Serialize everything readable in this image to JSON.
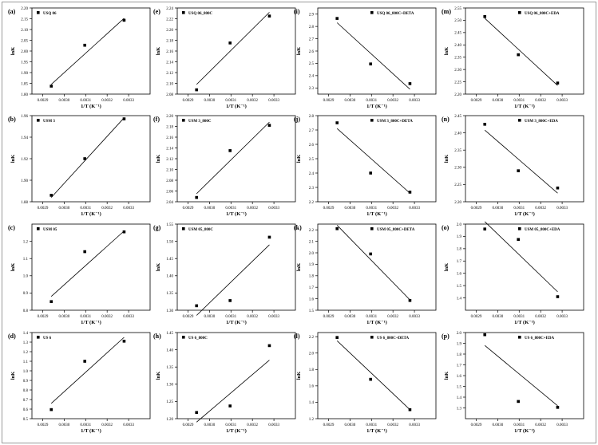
{
  "chart_data": [
    {
      "id": "a",
      "panel_label": "(a)",
      "type": "scatter",
      "legend": "USQ 06",
      "ylabel": "lnK",
      "xlabel": "1/T (K⁻¹)",
      "x": [
        0.00294,
        0.003096,
        0.003279
      ],
      "y": [
        1.837,
        2.027,
        2.143
      ],
      "fit": [
        1.845,
        2.152
      ],
      "xlim": [
        0.00285,
        0.0034
      ],
      "xticks": [
        "0.0029",
        "0.0030",
        "0.0031",
        "0.0032",
        "0.0033"
      ],
      "ylim": [
        1.8,
        2.2
      ],
      "yticks": [
        "1.80",
        "1.85",
        "1.90",
        "1.95",
        "2.00",
        "2.05",
        "2.10",
        "2.15",
        "2.20"
      ]
    },
    {
      "id": "b",
      "panel_label": "(b)",
      "type": "scatter",
      "legend": "USM 3",
      "ylabel": "lnK",
      "xlabel": "1/T (K⁻¹)",
      "x": [
        0.00294,
        0.003096,
        0.003279
      ],
      "y": [
        1.886,
        1.92,
        1.957
      ],
      "fit": [
        1.884,
        1.958
      ],
      "xlim": [
        0.00285,
        0.0034
      ],
      "xticks": [
        "0.0029",
        "0.0030",
        "0.0031",
        "0.0032",
        "0.0033"
      ],
      "ylim": [
        1.88,
        1.96
      ],
      "yticks": [
        "1.88",
        "1.90",
        "1.92",
        "1.94",
        "1.96"
      ]
    },
    {
      "id": "c",
      "panel_label": "(c)",
      "type": "scatter",
      "legend": "USM 05",
      "ylabel": "lnK",
      "xlabel": "1/T (K⁻¹)",
      "x": [
        0.00294,
        0.003096,
        0.003279
      ],
      "y": [
        0.85,
        1.14,
        1.255
      ],
      "fit": [
        0.88,
        1.26
      ],
      "xlim": [
        0.00285,
        0.0034
      ],
      "xticks": [
        "0.0029",
        "0.0030",
        "0.0031",
        "0.0032",
        "0.0033"
      ],
      "ylim": [
        0.8,
        1.3
      ],
      "yticks": [
        "0.8",
        "0.9",
        "1.0",
        "1.1",
        "1.2"
      ]
    },
    {
      "id": "d",
      "panel_label": "(d)",
      "type": "scatter",
      "legend": "US 6",
      "ylabel": "lnK",
      "xlabel": "1/T (K⁻¹)",
      "x": [
        0.00294,
        0.003096,
        0.003279
      ],
      "y": [
        0.595,
        1.1,
        1.31
      ],
      "fit": [
        0.66,
        1.35
      ],
      "xlim": [
        0.00285,
        0.0034
      ],
      "xticks": [
        "0.0029",
        "0.0030",
        "0.0031",
        "0.0032",
        "0.0033"
      ],
      "ylim": [
        0.5,
        1.4
      ],
      "yticks": [
        "0.5",
        "0.6",
        "0.7",
        "0.8",
        "0.9",
        "1.0",
        "1.1",
        "1.2",
        "1.3",
        "1.4"
      ]
    },
    {
      "id": "e",
      "panel_label": "(e)",
      "type": "scatter",
      "legend": "USQ 06_800C",
      "ylabel": "lnK",
      "xlabel": "1/T (K⁻¹)",
      "x": [
        0.00294,
        0.003096,
        0.003279
      ],
      "y": [
        2.088,
        2.175,
        2.225
      ],
      "fit": [
        2.098,
        2.232
      ],
      "xlim": [
        0.00285,
        0.0034
      ],
      "xticks": [
        "0.0029",
        "0.0030",
        "0.0031",
        "0.0032",
        "0.0033"
      ],
      "ylim": [
        2.08,
        2.24
      ],
      "yticks": [
        "2.08",
        "2.10",
        "2.12",
        "2.14",
        "2.16",
        "2.18",
        "2.20",
        "2.22",
        "2.24"
      ]
    },
    {
      "id": "f",
      "panel_label": "(f)",
      "type": "scatter",
      "legend": "USM 3_800C",
      "ylabel": "lnK",
      "xlabel": "1/T (K⁻¹)",
      "x": [
        0.00294,
        0.003096,
        0.003279
      ],
      "y": [
        2.048,
        2.135,
        2.182
      ],
      "fit": [
        2.055,
        2.188
      ],
      "xlim": [
        0.00285,
        0.0034
      ],
      "xticks": [
        "0.0029",
        "0.0030",
        "0.0031",
        "0.0032",
        "0.0033"
      ],
      "ylim": [
        2.04,
        2.2
      ],
      "yticks": [
        "2.04",
        "2.06",
        "2.08",
        "2.10",
        "2.12",
        "2.14",
        "2.16",
        "2.18",
        "2.20"
      ]
    },
    {
      "id": "g",
      "panel_label": "(g)",
      "type": "scatter",
      "legend": "USM 05_800C",
      "ylabel": "lnK",
      "xlabel": "1/T (K⁻¹)",
      "x": [
        0.00294,
        0.003096,
        0.003279
      ],
      "y": [
        1.313,
        1.328,
        1.512
      ],
      "fit": [
        1.285,
        1.49
      ],
      "xlim": [
        0.00285,
        0.0034
      ],
      "xticks": [
        "0.0029",
        "0.0030",
        "0.0031",
        "0.0032",
        "0.0033"
      ],
      "ylim": [
        1.3,
        1.55
      ],
      "yticks": [
        "1.30",
        "1.35",
        "1.40",
        "1.45",
        "1.50",
        "1.55"
      ]
    },
    {
      "id": "h",
      "panel_label": "(h)",
      "type": "scatter",
      "legend": "US 6_800C",
      "ylabel": "lnK",
      "xlabel": "1/T (K⁻¹)",
      "x": [
        0.00294,
        0.003096,
        0.003279
      ],
      "y": [
        1.218,
        1.237,
        1.412
      ],
      "fit": [
        1.19,
        1.37
      ],
      "xlim": [
        0.00285,
        0.0034
      ],
      "xticks": [
        "0.0029",
        "0.0030",
        "0.0031",
        "0.0032",
        "0.0033"
      ],
      "ylim": [
        1.2,
        1.45
      ],
      "yticks": [
        "1.20",
        "1.25",
        "1.30",
        "1.35",
        "1.40",
        "1.45"
      ]
    },
    {
      "id": "i",
      "panel_label": "(i)",
      "type": "scatter",
      "legend": "USQ 06_800C+DETA",
      "ylabel": "lnK",
      "xlabel": "1/T (K⁻¹)",
      "x": [
        0.00294,
        0.003096,
        0.003279
      ],
      "y": [
        2.865,
        2.495,
        2.335
      ],
      "fit": [
        2.83,
        2.29
      ],
      "xlim": [
        0.00285,
        0.0034
      ],
      "xticks": [
        "0.0029",
        "0.0030",
        "0.0031",
        "0.0032",
        "0.0033"
      ],
      "ylim": [
        2.25,
        2.95
      ],
      "yticks": [
        "2.3",
        "2.4",
        "2.5",
        "2.6",
        "2.7",
        "2.8",
        "2.9"
      ]
    },
    {
      "id": "j",
      "panel_label": "(j)",
      "type": "scatter",
      "legend": "USM 3_800C+DETA",
      "ylabel": "lnK",
      "xlabel": "1/T (K⁻¹)",
      "x": [
        0.00294,
        0.003096,
        0.003279
      ],
      "y": [
        2.75,
        2.4,
        2.267
      ],
      "fit": [
        2.71,
        2.26
      ],
      "xlim": [
        0.00285,
        0.0034
      ],
      "xticks": [
        "0.0029",
        "0.0030",
        "0.0031",
        "0.0032",
        "0.0033"
      ],
      "ylim": [
        2.2,
        2.8
      ],
      "yticks": [
        "2.2",
        "2.3",
        "2.4",
        "2.5",
        "2.6",
        "2.7",
        "2.8"
      ]
    },
    {
      "id": "k",
      "panel_label": "(k)",
      "type": "scatter",
      "legend": "USM 05_800C+DETA",
      "ylabel": "lnK",
      "xlabel": "1/T (K⁻¹)",
      "x": [
        0.00294,
        0.003096,
        0.003279
      ],
      "y": [
        2.21,
        1.99,
        1.585
      ],
      "fit": [
        2.24,
        1.59
      ],
      "xlim": [
        0.00285,
        0.0034
      ],
      "xticks": [
        "0.0029",
        "0.0030",
        "0.0031",
        "0.0032",
        "0.0033"
      ],
      "ylim": [
        1.5,
        2.25
      ],
      "yticks": [
        "1.5",
        "1.6",
        "1.7",
        "1.8",
        "1.9",
        "2.0",
        "2.1",
        "2.2"
      ]
    },
    {
      "id": "l",
      "panel_label": "(l)",
      "type": "scatter",
      "legend": "US 6_800C+DETA",
      "ylabel": "lnK",
      "xlabel": "1/T (K⁻¹)",
      "x": [
        0.00294,
        0.003096,
        0.003279
      ],
      "y": [
        2.19,
        1.68,
        1.31
      ],
      "fit": [
        2.15,
        1.31
      ],
      "xlim": [
        0.00285,
        0.0034
      ],
      "xticks": [
        "0.0029",
        "0.0030",
        "0.0031",
        "0.0032",
        "0.0033"
      ],
      "ylim": [
        1.2,
        2.25
      ],
      "yticks": [
        "1.2",
        "1.4",
        "1.6",
        "1.8",
        "2.0",
        "2.2"
      ]
    },
    {
      "id": "m",
      "panel_label": "(m)",
      "type": "scatter",
      "legend": "USQ 06_800C+EDA",
      "ylabel": "lnK",
      "xlabel": "1/T (K⁻¹)",
      "x": [
        0.00294,
        0.003096,
        0.003279
      ],
      "y": [
        2.515,
        2.36,
        2.245
      ],
      "fit": [
        2.508,
        2.235
      ],
      "xlim": [
        0.00285,
        0.0034
      ],
      "xticks": [
        "0.0029",
        "0.0030",
        "0.0031",
        "0.0032",
        "0.0033"
      ],
      "ylim": [
        2.2,
        2.55
      ],
      "yticks": [
        "2.20",
        "2.25",
        "2.30",
        "2.35",
        "2.40",
        "2.45",
        "2.50",
        "2.55"
      ]
    },
    {
      "id": "n",
      "panel_label": "(n)",
      "type": "scatter",
      "legend": "USM 3_800C+EDA",
      "ylabel": "lnK",
      "xlabel": "1/T (K⁻¹)",
      "x": [
        0.00294,
        0.003096,
        0.003279
      ],
      "y": [
        2.425,
        2.29,
        2.24
      ],
      "fit": [
        2.408,
        2.225
      ],
      "xlim": [
        0.00285,
        0.0034
      ],
      "xticks": [
        "0.0029",
        "0.0030",
        "0.0031",
        "0.0032",
        "0.0033"
      ],
      "ylim": [
        2.2,
        2.45
      ],
      "yticks": [
        "2.20",
        "2.25",
        "2.30",
        "2.35",
        "2.40",
        "2.45"
      ]
    },
    {
      "id": "o",
      "panel_label": "(o)",
      "type": "scatter",
      "legend": "USM 05_800C+EDA",
      "ylabel": "lnK",
      "xlabel": "1/T (K⁻¹)",
      "x": [
        0.00294,
        0.003096,
        0.003279
      ],
      "y": [
        1.96,
        1.875,
        1.41
      ],
      "fit": [
        2.02,
        1.45
      ],
      "xlim": [
        0.00285,
        0.0034
      ],
      "xticks": [
        "0.0029",
        "0.0030",
        "0.0031",
        "0.0032",
        "0.0033"
      ],
      "ylim": [
        1.3,
        2.0
      ],
      "yticks": [
        "1.4",
        "1.5",
        "1.6",
        "1.7",
        "1.8",
        "1.9",
        "2.0"
      ]
    },
    {
      "id": "p",
      "panel_label": "(p)",
      "type": "scatter",
      "legend": "US 6_800C+EDA",
      "ylabel": "lnK",
      "xlabel": "1/T (K⁻¹)",
      "x": [
        0.00294,
        0.003096,
        0.003279
      ],
      "y": [
        1.98,
        1.36,
        1.305
      ],
      "fit": [
        1.88,
        1.32
      ],
      "xlim": [
        0.00285,
        0.0034
      ],
      "xticks": [
        "0.0029",
        "0.0030",
        "0.0031",
        "0.0032",
        "0.0033"
      ],
      "ylim": [
        1.2,
        2.0
      ],
      "yticks": [
        "1.3",
        "1.4",
        "1.5",
        "1.6",
        "1.7",
        "1.8",
        "1.9",
        "2.0"
      ]
    }
  ]
}
